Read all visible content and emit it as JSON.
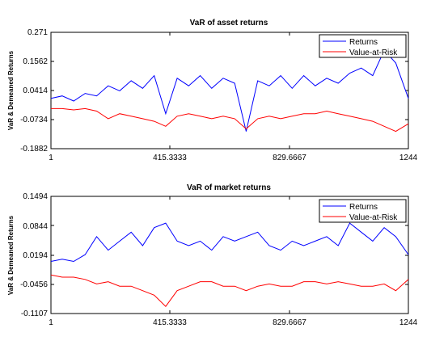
{
  "chart_data": [
    {
      "type": "line",
      "title": "VaR of asset returns",
      "xlabel": "",
      "ylabel": "VaR & Demeaned Returns",
      "xlim": [
        1,
        1244
      ],
      "ylim": [
        -0.1882,
        0.271
      ],
      "x_ticks": [
        "1",
        "415.3333",
        "829.6667",
        "1244"
      ],
      "y_ticks": [
        "0.271",
        "0.1562",
        "0.0414",
        "-0.0734",
        "-0.1882"
      ],
      "legend_position": "top-right",
      "series": [
        {
          "name": "Returns",
          "color": "#0000ff",
          "x": [
            1,
            40,
            80,
            120,
            160,
            200,
            240,
            280,
            320,
            360,
            400,
            440,
            480,
            520,
            560,
            600,
            640,
            680,
            720,
            760,
            800,
            840,
            880,
            920,
            960,
            1000,
            1040,
            1080,
            1120,
            1160,
            1200,
            1244
          ],
          "values": [
            0.01,
            0.02,
            0.0,
            0.03,
            0.02,
            0.06,
            0.04,
            0.08,
            0.05,
            0.1,
            -0.05,
            0.09,
            0.06,
            0.1,
            0.05,
            0.09,
            0.07,
            -0.12,
            0.08,
            0.06,
            0.1,
            0.05,
            0.1,
            0.06,
            0.09,
            0.07,
            0.11,
            0.13,
            0.1,
            0.2,
            0.15,
            0.01
          ]
        },
        {
          "name": "Value-at-Risk",
          "color": "#ff0000",
          "x": [
            1,
            40,
            80,
            120,
            160,
            200,
            240,
            280,
            320,
            360,
            400,
            440,
            480,
            520,
            560,
            600,
            640,
            680,
            720,
            760,
            800,
            840,
            880,
            920,
            960,
            1000,
            1040,
            1080,
            1120,
            1160,
            1200,
            1244
          ],
          "values": [
            -0.03,
            -0.03,
            -0.035,
            -0.03,
            -0.04,
            -0.07,
            -0.05,
            -0.06,
            -0.07,
            -0.08,
            -0.1,
            -0.06,
            -0.05,
            -0.06,
            -0.07,
            -0.06,
            -0.07,
            -0.11,
            -0.07,
            -0.06,
            -0.07,
            -0.06,
            -0.05,
            -0.05,
            -0.04,
            -0.05,
            -0.06,
            -0.07,
            -0.08,
            -0.1,
            -0.12,
            -0.09
          ]
        }
      ]
    },
    {
      "type": "line",
      "title": "VaR of market returns",
      "xlabel": "",
      "ylabel": "VaR & Demeaned Returns",
      "xlim": [
        1,
        1244
      ],
      "ylim": [
        -0.1107,
        0.1494
      ],
      "x_ticks": [
        "1",
        "415.3333",
        "829.6667",
        "1244"
      ],
      "y_ticks": [
        "0.1494",
        "0.0844",
        "0.0194",
        "-0.0456",
        "-0.1107"
      ],
      "legend_position": "top-right",
      "series": [
        {
          "name": "Returns",
          "color": "#0000ff",
          "x": [
            1,
            40,
            80,
            120,
            160,
            200,
            240,
            280,
            320,
            360,
            400,
            440,
            480,
            520,
            560,
            600,
            640,
            680,
            720,
            760,
            800,
            840,
            880,
            920,
            960,
            1000,
            1040,
            1080,
            1120,
            1160,
            1200,
            1244
          ],
          "values": [
            0.005,
            0.01,
            0.005,
            0.02,
            0.06,
            0.03,
            0.05,
            0.07,
            0.04,
            0.08,
            0.09,
            0.05,
            0.04,
            0.05,
            0.03,
            0.06,
            0.05,
            0.06,
            0.07,
            0.04,
            0.03,
            0.05,
            0.04,
            0.05,
            0.06,
            0.04,
            0.09,
            0.07,
            0.05,
            0.08,
            0.06,
            0.02
          ]
        },
        {
          "name": "Value-at-Risk",
          "color": "#ff0000",
          "x": [
            1,
            40,
            80,
            120,
            160,
            200,
            240,
            280,
            320,
            360,
            400,
            440,
            480,
            520,
            560,
            600,
            640,
            680,
            720,
            760,
            800,
            840,
            880,
            920,
            960,
            1000,
            1040,
            1080,
            1120,
            1160,
            1200,
            1244
          ],
          "values": [
            -0.025,
            -0.03,
            -0.03,
            -0.035,
            -0.045,
            -0.04,
            -0.05,
            -0.05,
            -0.06,
            -0.07,
            -0.095,
            -0.06,
            -0.05,
            -0.04,
            -0.04,
            -0.05,
            -0.05,
            -0.06,
            -0.05,
            -0.045,
            -0.05,
            -0.05,
            -0.04,
            -0.04,
            -0.045,
            -0.04,
            -0.045,
            -0.05,
            -0.05,
            -0.045,
            -0.06,
            -0.035
          ]
        }
      ]
    }
  ]
}
